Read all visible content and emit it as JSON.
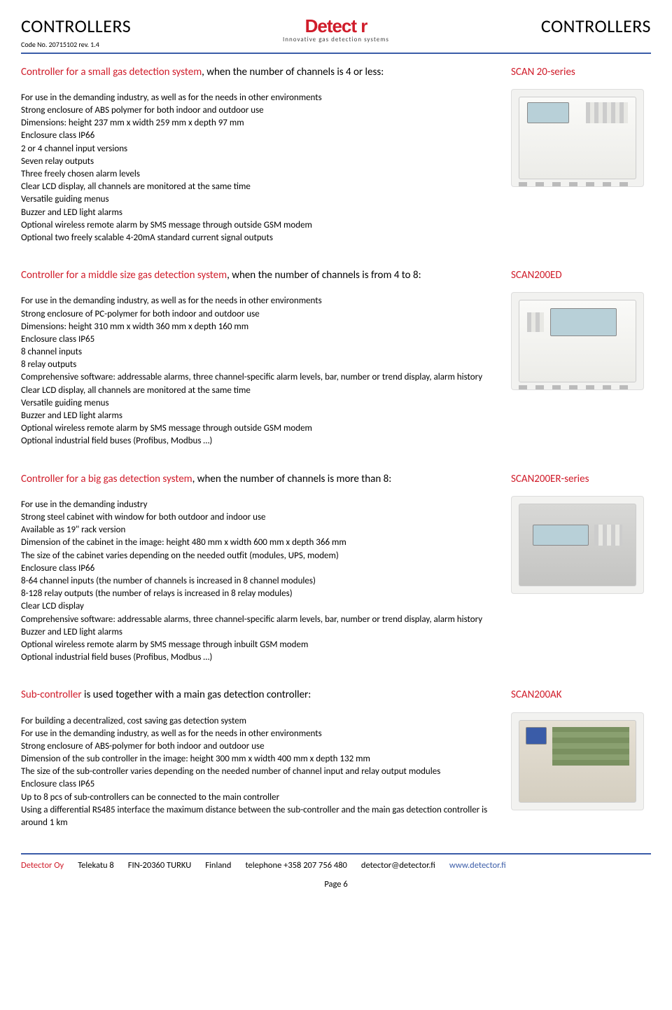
{
  "header": {
    "left_title": "CONTROLLERS",
    "code_line": "Code No. 20715102 rev. 1.4",
    "right_title": "CONTROLLERS",
    "logo_text": "Detect  r",
    "logo_sub": "Innovative gas detection systems"
  },
  "sections": [
    {
      "heading_red": "Controller for a small gas detection system",
      "heading_rest": ", when the number of channels is 4 or less:",
      "series": "SCAN 20-series",
      "lines": [
        "For use in the demanding industry, as well as for the needs in other environments",
        "Strong enclosure of ABS polymer for both indoor and outdoor use",
        "Dimensions: height 237 mm x width 259 mm x depth 97 mm",
        "Enclosure class IP66",
        "2 or 4 channel input versions",
        "Seven relay outputs",
        "Three freely chosen alarm levels",
        "Clear LCD display, all channels are monitored at the same time",
        "Versatile guiding menus",
        "Buzzer and LED light alarms",
        "Optional wireless remote alarm by SMS message through outside GSM modem",
        "Optional two freely scalable 4-20mA standard current signal outputs"
      ]
    },
    {
      "heading_red": "Controller for a middle size gas detection system",
      "heading_rest": ", when the number of channels is from 4 to 8:",
      "series": "SCAN200ED",
      "lines": [
        "For use in the demanding industry, as well as for the needs in other environments",
        "Strong enclosure of PC-polymer for both indoor and outdoor use",
        "Dimensions: height 310 mm x width 360 mm x depth 160 mm",
        "Enclosure class IP65",
        "8 channel inputs",
        "8 relay outputs",
        "Comprehensive software: addressable alarms, three channel-specific alarm levels, bar, number or trend display, alarm history",
        "Clear LCD display, all channels are monitored at the same time",
        "Versatile guiding menus",
        "Buzzer and LED light alarms",
        "Optional wireless remote alarm by SMS message through outside GSM modem",
        "Optional industrial field buses (Profibus, Modbus …)"
      ]
    },
    {
      "heading_red": "Controller for a big gas detection system",
      "heading_rest": ", when the number of channels is more than 8:",
      "series": "SCAN200ER-series",
      "lines": [
        "For use in the demanding industry",
        "Strong steel cabinet with window for both outdoor and indoor use",
        "Available as 19\" rack version",
        "Dimension of the cabinet in the image: height 480 mm x width 600 mm x depth 366 mm",
        "The size of the cabinet varies depending on the needed outfit (modules, UPS, modem)",
        "Enclosure class IP66",
        "8-64 channel inputs (the number of channels is increased in 8 channel modules)",
        "8-128 relay outputs (the number of relays is increased in 8 relay modules)",
        "Clear LCD display",
        "Comprehensive software: addressable alarms, three channel-specific alarm levels, bar, number or trend display, alarm history",
        "Buzzer and LED light alarms",
        "Optional wireless remote alarm by SMS message through inbuilt GSM modem",
        "Optional industrial field buses (Profibus, Modbus …)"
      ]
    },
    {
      "heading_red": "Sub-controller",
      "heading_rest": " is used together with a main gas detection controller:",
      "series": "SCAN200AK",
      "lines": [
        "For building a decentralized, cost saving gas detection system",
        "For use in the demanding industry, as well as for the needs in other environments",
        "Strong enclosure of ABS-polymer for both indoor and outdoor use",
        "Dimension of the sub controller in the image: height 300 mm x width 400 mm x depth 132 mm",
        "The size of the sub-controller varies depending on the needed number of channel input and relay output modules",
        "Enclosure class IP65",
        "Up to 8 pcs of sub-controllers can be connected to the main controller",
        "Using a differential RS485 interface the maximum distance between the sub-controller and the main gas detection controller is around 1 km"
      ]
    }
  ],
  "footer": {
    "company": "Detector Oy",
    "address": "Telekatu 8",
    "postal": "FIN-20360 TURKU",
    "country": "Finland",
    "phone": "telephone +358 207 756 480",
    "email": "detector@detector.fi",
    "web": "www.detector.fi",
    "page": "Page 6"
  }
}
